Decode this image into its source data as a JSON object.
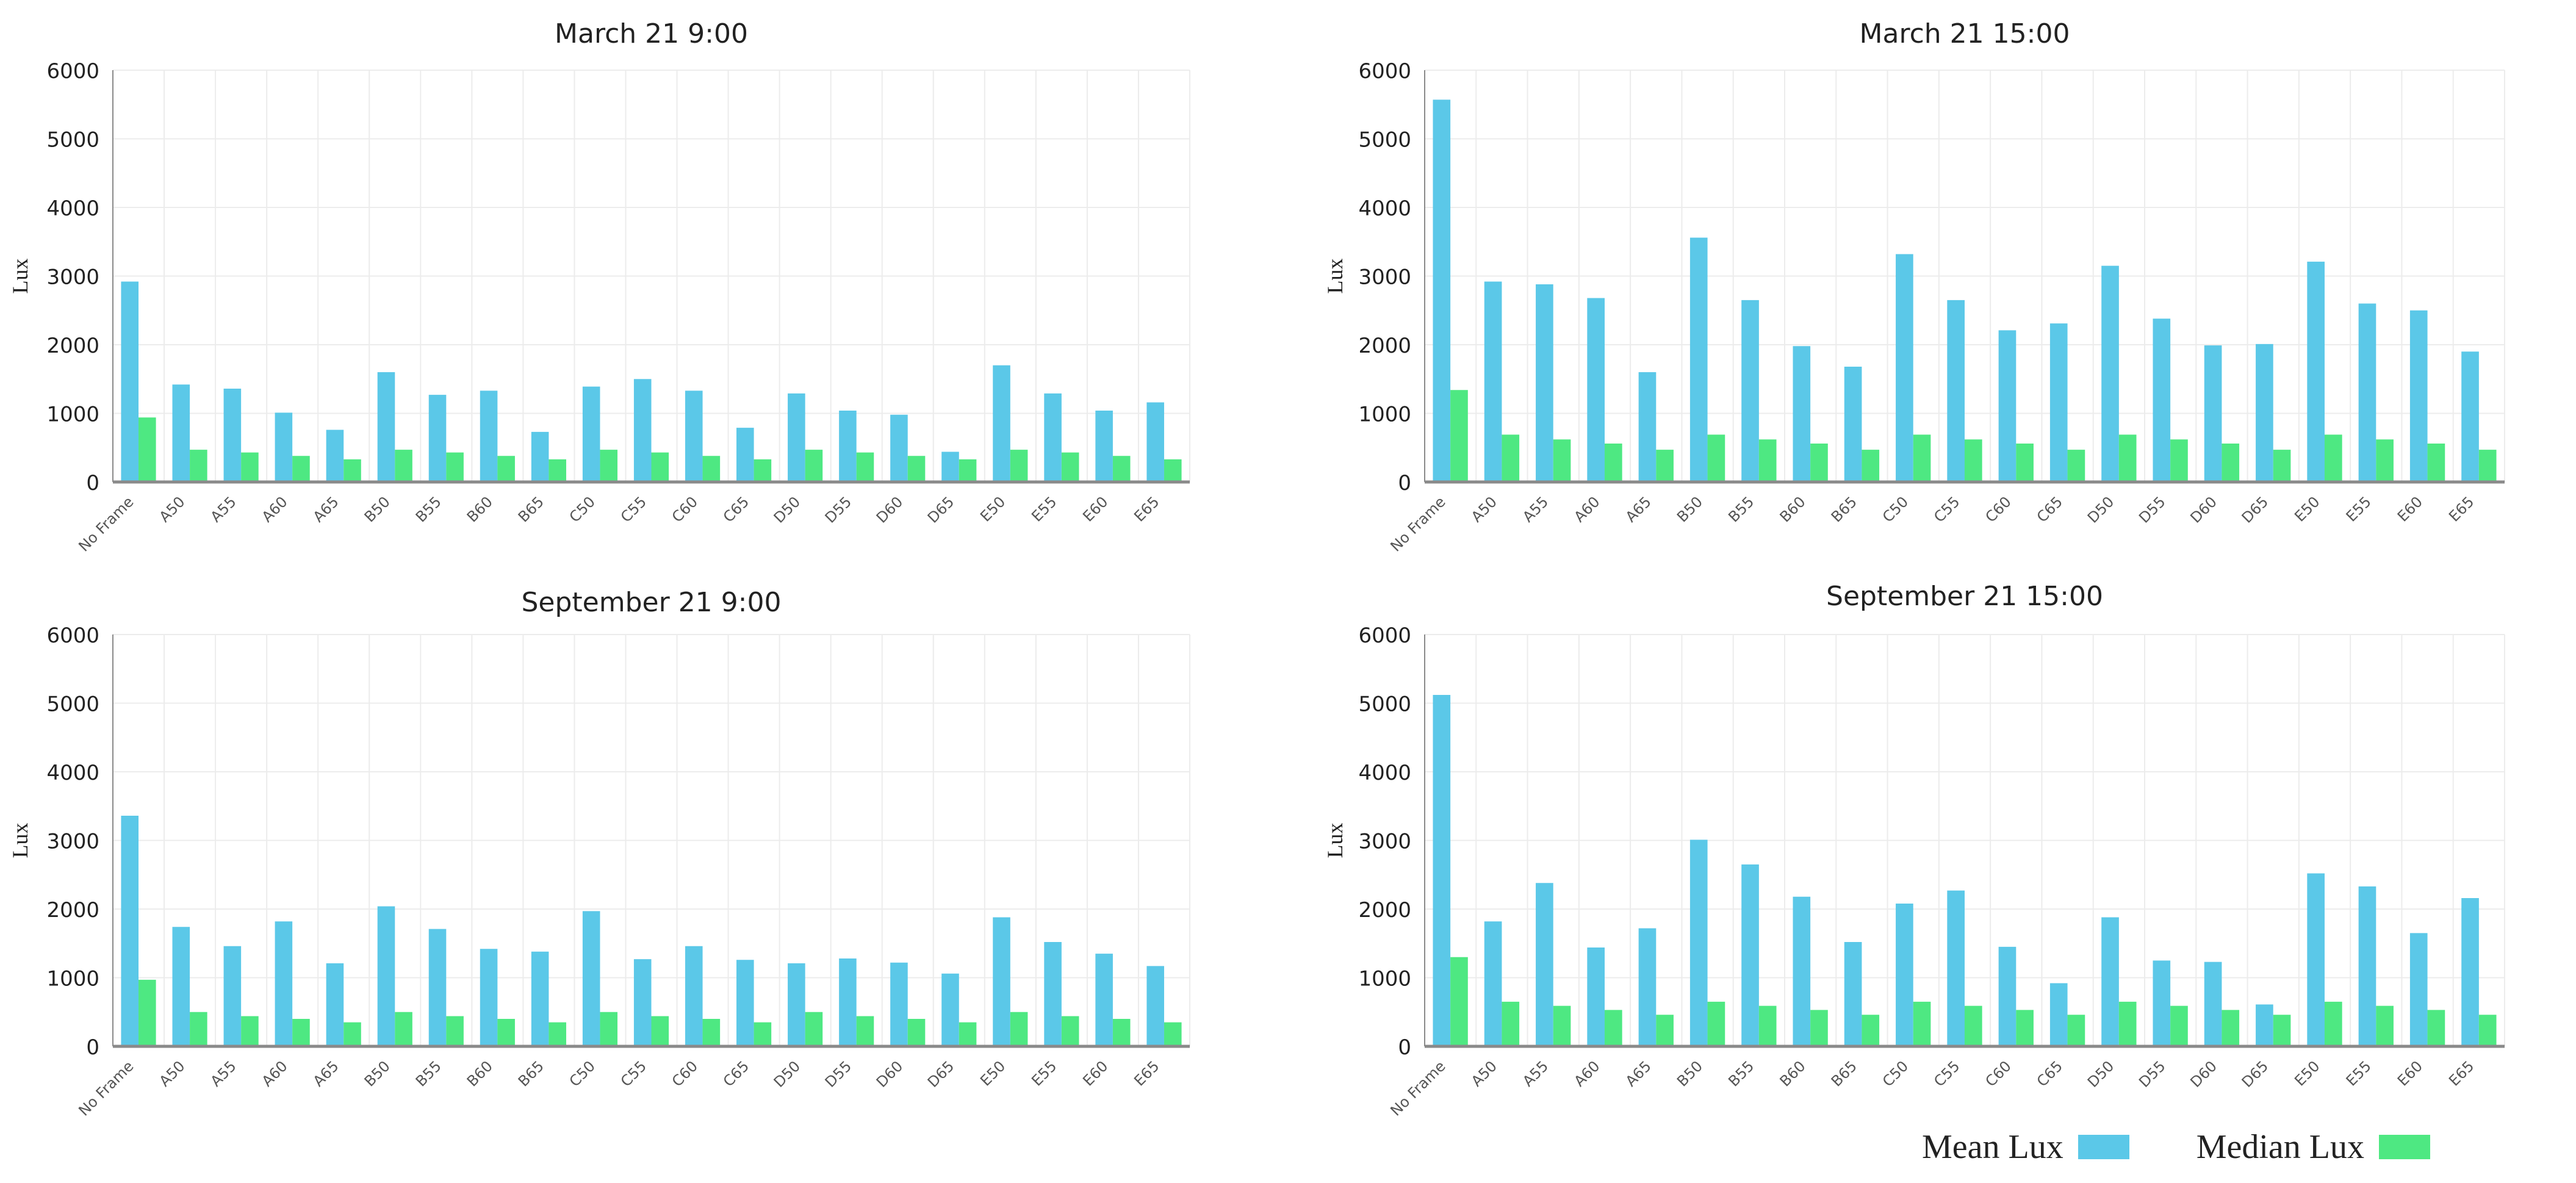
{
  "chart_data": [
    {
      "type": "bar",
      "title": "March 21 9:00",
      "ylabel": "Lux",
      "ylim": [
        0,
        6000
      ],
      "yticks": [
        0,
        1000,
        2000,
        3000,
        4000,
        5000,
        6000
      ],
      "categories": [
        "No Frame",
        "A50",
        "A55",
        "A60",
        "A65",
        "B50",
        "B55",
        "B60",
        "B65",
        "C50",
        "C55",
        "C60",
        "C65",
        "D50",
        "D55",
        "D60",
        "D65",
        "E50",
        "E55",
        "E60",
        "E65"
      ],
      "series": [
        {
          "name": "Mean Lux",
          "values": [
            2920,
            1420,
            1360,
            1010,
            760,
            1600,
            1270,
            1330,
            730,
            1390,
            1500,
            1330,
            790,
            1290,
            1040,
            980,
            440,
            1700,
            1290,
            1040,
            1160
          ]
        },
        {
          "name": "Median Lux",
          "values": [
            940,
            470,
            430,
            380,
            330,
            470,
            430,
            380,
            330,
            470,
            430,
            380,
            330,
            470,
            430,
            380,
            330,
            470,
            430,
            380,
            330
          ]
        }
      ]
    },
    {
      "type": "bar",
      "title": "March 21 15:00",
      "ylabel": "Lux",
      "ylim": [
        0,
        6000
      ],
      "yticks": [
        0,
        1000,
        2000,
        3000,
        4000,
        5000,
        6000
      ],
      "categories": [
        "No Frame",
        "A50",
        "A55",
        "A60",
        "A65",
        "B50",
        "B55",
        "B60",
        "B65",
        "C50",
        "C55",
        "C60",
        "C65",
        "D50",
        "D55",
        "D60",
        "D65",
        "E50",
        "E55",
        "E60",
        "E65"
      ],
      "series": [
        {
          "name": "Mean Lux",
          "values": [
            5570,
            2920,
            2880,
            2680,
            1600,
            3560,
            2650,
            1980,
            1680,
            3320,
            2650,
            2210,
            2310,
            3150,
            2380,
            1990,
            2010,
            3210,
            2600,
            2500,
            1900
          ]
        },
        {
          "name": "Median Lux",
          "values": [
            1340,
            690,
            620,
            560,
            470,
            690,
            620,
            560,
            470,
            690,
            620,
            560,
            470,
            690,
            620,
            560,
            470,
            690,
            620,
            560,
            470
          ]
        }
      ]
    },
    {
      "type": "bar",
      "title": "September 21 9:00",
      "ylabel": "Lux",
      "ylim": [
        0,
        6000
      ],
      "yticks": [
        0,
        1000,
        2000,
        3000,
        4000,
        5000,
        6000
      ],
      "categories": [
        "No Frame",
        "A50",
        "A55",
        "A60",
        "A65",
        "B50",
        "B55",
        "B60",
        "B65",
        "C50",
        "C55",
        "C60",
        "C65",
        "D50",
        "D55",
        "D60",
        "D65",
        "E50",
        "E55",
        "E60",
        "E65"
      ],
      "series": [
        {
          "name": "Mean Lux",
          "values": [
            3360,
            1740,
            1460,
            1820,
            1210,
            2040,
            1710,
            1420,
            1380,
            1970,
            1270,
            1460,
            1260,
            1210,
            1280,
            1220,
            1060,
            1880,
            1520,
            1350,
            1170
          ]
        },
        {
          "name": "Median Lux",
          "values": [
            970,
            500,
            440,
            400,
            350,
            500,
            440,
            400,
            350,
            500,
            440,
            400,
            350,
            500,
            440,
            400,
            350,
            500,
            440,
            400,
            350
          ]
        }
      ]
    },
    {
      "type": "bar",
      "title": "September 21 15:00",
      "ylabel": "Lux",
      "ylim": [
        0,
        6000
      ],
      "yticks": [
        0,
        1000,
        2000,
        3000,
        4000,
        5000,
        6000
      ],
      "categories": [
        "No Frame",
        "A50",
        "A55",
        "A60",
        "A65",
        "B50",
        "B55",
        "B60",
        "B65",
        "C50",
        "C55",
        "C60",
        "C65",
        "D50",
        "D55",
        "D60",
        "D65",
        "E50",
        "E55",
        "E60",
        "E65"
      ],
      "series": [
        {
          "name": "Mean Lux",
          "values": [
            5120,
            1820,
            2380,
            1440,
            1720,
            3010,
            2650,
            2180,
            1520,
            2080,
            2270,
            1450,
            920,
            1880,
            1250,
            1230,
            610,
            2520,
            2330,
            1650,
            2160
          ]
        },
        {
          "name": "Median Lux",
          "values": [
            1300,
            650,
            590,
            530,
            460,
            650,
            590,
            530,
            460,
            650,
            590,
            530,
            460,
            650,
            590,
            530,
            460,
            650,
            590,
            530,
            460
          ]
        }
      ]
    }
  ],
  "legend": {
    "mean_label": "Mean Lux",
    "median_label": "Median Lux"
  },
  "colors": {
    "mean": "#5bc8e8",
    "median": "#4ee882",
    "grid": "#ececec",
    "axis": "#8a8a8a",
    "text": "#222222"
  }
}
